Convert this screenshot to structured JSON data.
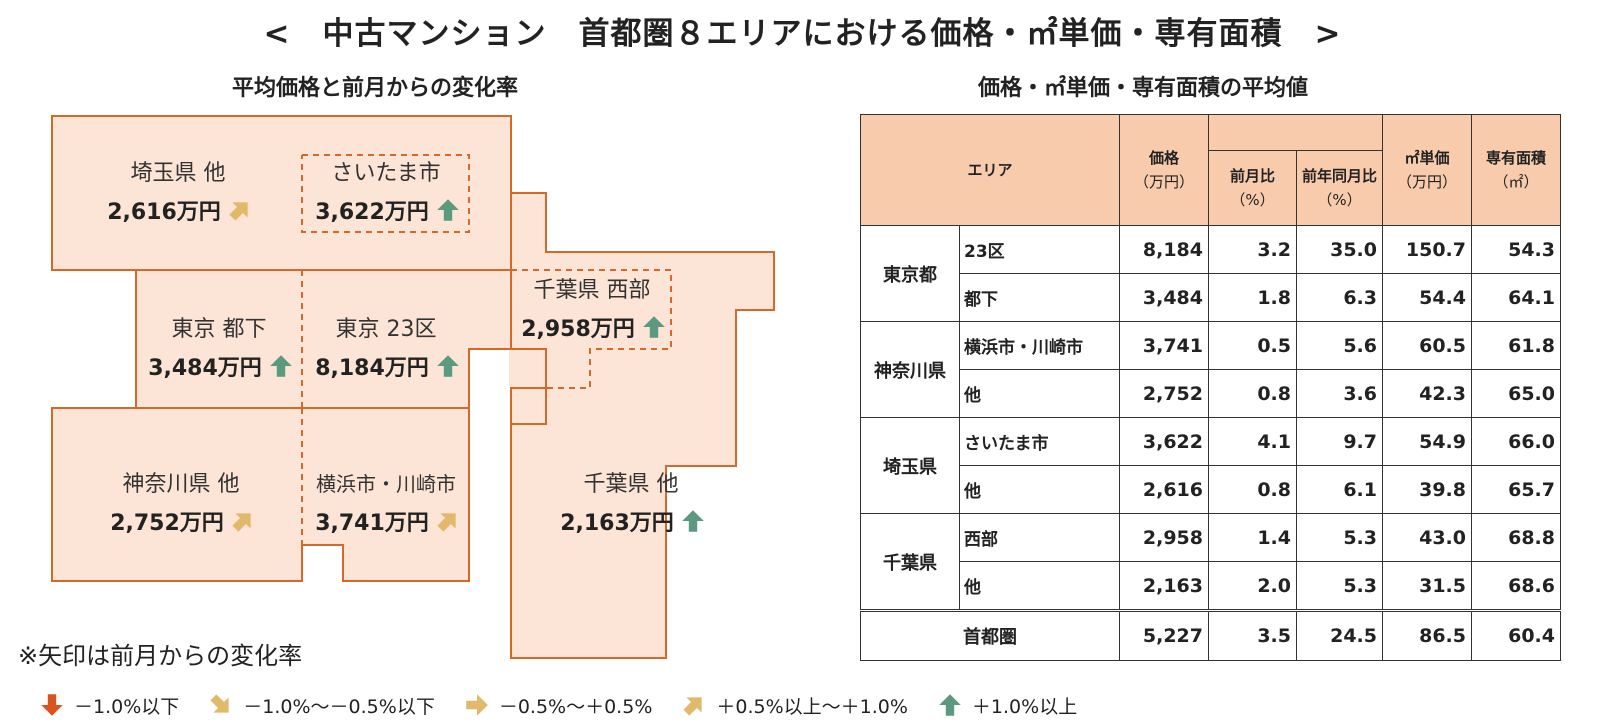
{
  "title": "<　中古マンション　首都圏８エリアにおける価格・㎡単価・専有面積　>",
  "map_title": "平均価格と前月からの変化率",
  "table_title": "価格・㎡単価・専有面積の平均値",
  "note": "※矢印は前月からの変化率",
  "colors": {
    "region_fill": "#fce4d6",
    "region_border": "#d46a2a",
    "header_fill": "#f8cbad",
    "arrow_down": "#d9531e",
    "arrow_diag": "#e2b86a",
    "arrow_up": "#5b9a80"
  },
  "regions": [
    {
      "name": "埼玉県 他",
      "price": "2,616万円",
      "arrow": "up-right"
    },
    {
      "name": "さいたま市",
      "price": "3,622万円",
      "arrow": "up"
    },
    {
      "name": "東京 都下",
      "price": "3,484万円",
      "arrow": "up"
    },
    {
      "name": "東京 23区",
      "price": "8,184万円",
      "arrow": "up"
    },
    {
      "name": "千葉県 西部",
      "price": "2,958万円",
      "arrow": "up"
    },
    {
      "name": "神奈川県 他",
      "price": "2,752万円",
      "arrow": "up-right"
    },
    {
      "name": "横浜市・川崎市",
      "price": "3,741万円",
      "arrow": "up-right"
    },
    {
      "name": "千葉県 他",
      "price": "2,163万円",
      "arrow": "up"
    }
  ],
  "legend": [
    {
      "label": "－1.0%以下",
      "arrow": "down"
    },
    {
      "label": "－1.0%～－0.5%以下",
      "arrow": "down-right"
    },
    {
      "label": "－0.5%～＋0.5%",
      "arrow": "right"
    },
    {
      "label": "＋0.5%以上～＋1.0%",
      "arrow": "up-right"
    },
    {
      "label": "＋1.0%以上",
      "arrow": "up"
    }
  ],
  "table": {
    "headers": {
      "area": "エリア",
      "price": "価格",
      "price_unit": "（万円）",
      "mom": "前月比",
      "mom_unit": "（%）",
      "yoy": "前年同月比",
      "yoy_unit": "（%）",
      "sqm": "㎡単価",
      "sqm_unit": "（万円）",
      "area_size": "専有面積",
      "area_size_unit": "（㎡）"
    },
    "groups": [
      {
        "name": "東京都",
        "rows": [
          {
            "sub": "23区",
            "price": "8,184",
            "mom": "3.2",
            "yoy": "35.0",
            "sqm": "150.7",
            "size": "54.3"
          },
          {
            "sub": "都下",
            "price": "3,484",
            "mom": "1.8",
            "yoy": "6.3",
            "sqm": "54.4",
            "size": "64.1"
          }
        ]
      },
      {
        "name": "神奈川県",
        "rows": [
          {
            "sub": "横浜市・川崎市",
            "price": "3,741",
            "mom": "0.5",
            "yoy": "5.6",
            "sqm": "60.5",
            "size": "61.8"
          },
          {
            "sub": "他",
            "price": "2,752",
            "mom": "0.8",
            "yoy": "3.6",
            "sqm": "42.3",
            "size": "65.0"
          }
        ]
      },
      {
        "name": "埼玉県",
        "rows": [
          {
            "sub": "さいたま市",
            "price": "3,622",
            "mom": "4.1",
            "yoy": "9.7",
            "sqm": "54.9",
            "size": "66.0"
          },
          {
            "sub": "他",
            "price": "2,616",
            "mom": "0.8",
            "yoy": "6.1",
            "sqm": "39.8",
            "size": "65.7"
          }
        ]
      },
      {
        "name": "千葉県",
        "rows": [
          {
            "sub": "西部",
            "price": "2,958",
            "mom": "1.4",
            "yoy": "5.3",
            "sqm": "43.0",
            "size": "68.8"
          },
          {
            "sub": "他",
            "price": "2,163",
            "mom": "2.0",
            "yoy": "5.3",
            "sqm": "31.5",
            "size": "68.6"
          }
        ]
      }
    ],
    "total": {
      "name": "首都圏",
      "price": "5,227",
      "mom": "3.5",
      "yoy": "24.5",
      "sqm": "86.5",
      "size": "60.4"
    }
  },
  "chart_data": {
    "type": "table",
    "title": "価格・㎡単価・専有面積の平均値",
    "columns": [
      "価格（万円）",
      "前月比（%）",
      "前年同月比（%）",
      "㎡単価（万円）",
      "専有面積（㎡）"
    ],
    "rows": [
      {
        "area": "東京都 23区",
        "values": [
          8184,
          3.2,
          35.0,
          150.7,
          54.3
        ]
      },
      {
        "area": "東京都 都下",
        "values": [
          3484,
          1.8,
          6.3,
          54.4,
          64.1
        ]
      },
      {
        "area": "神奈川県 横浜市・川崎市",
        "values": [
          3741,
          0.5,
          5.6,
          60.5,
          61.8
        ]
      },
      {
        "area": "神奈川県 他",
        "values": [
          2752,
          0.8,
          3.6,
          42.3,
          65.0
        ]
      },
      {
        "area": "埼玉県 さいたま市",
        "values": [
          3622,
          4.1,
          9.7,
          54.9,
          66.0
        ]
      },
      {
        "area": "埼玉県 他",
        "values": [
          2616,
          0.8,
          6.1,
          39.8,
          65.7
        ]
      },
      {
        "area": "千葉県 西部",
        "values": [
          2958,
          1.4,
          5.3,
          43.0,
          68.8
        ]
      },
      {
        "area": "千葉県 他",
        "values": [
          2163,
          2.0,
          5.3,
          31.5,
          68.6
        ]
      },
      {
        "area": "首都圏",
        "values": [
          5227,
          3.5,
          24.5,
          86.5,
          60.4
        ]
      }
    ]
  }
}
